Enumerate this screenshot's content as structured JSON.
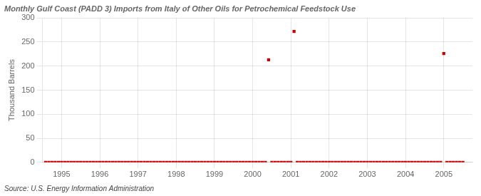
{
  "chart_data": {
    "type": "scatter",
    "title": "Monthly Gulf Coast (PADD 3) Imports from Italy of Other Oils for Petrochemical Feedstock Use",
    "ylabel": "Thousand Barrels",
    "source": "Source: U.S. Energy Information Administration",
    "color": "#cc0000",
    "marker": "square",
    "grid": true,
    "xlim": [
      1994.5,
      2005.75
    ],
    "xticks": [
      1995,
      1996,
      1997,
      1998,
      1999,
      2000,
      2001,
      2002,
      2003,
      2004,
      2005
    ],
    "ylim": [
      0,
      300
    ],
    "yticks": [
      0,
      50,
      100,
      150,
      200,
      250,
      300
    ],
    "x": [
      1994.583,
      1994.667,
      1994.75,
      1994.833,
      1994.917,
      1995.0,
      1995.083,
      1995.167,
      1995.25,
      1995.333,
      1995.417,
      1995.5,
      1995.583,
      1995.667,
      1995.75,
      1995.833,
      1995.917,
      1996.0,
      1996.083,
      1996.167,
      1996.25,
      1996.333,
      1996.417,
      1996.5,
      1996.583,
      1996.667,
      1996.75,
      1996.833,
      1996.917,
      1997.0,
      1997.083,
      1997.167,
      1997.25,
      1997.333,
      1997.417,
      1997.5,
      1997.583,
      1997.667,
      1997.75,
      1997.833,
      1997.917,
      1998.0,
      1998.083,
      1998.167,
      1998.25,
      1998.333,
      1998.417,
      1998.5,
      1998.583,
      1998.667,
      1998.75,
      1998.833,
      1998.917,
      1999.0,
      1999.083,
      1999.167,
      1999.25,
      1999.333,
      1999.417,
      1999.5,
      1999.583,
      1999.667,
      1999.75,
      1999.833,
      1999.917,
      2000.0,
      2000.083,
      2000.167,
      2000.25,
      2000.333,
      2000.417,
      2000.5,
      2000.583,
      2000.667,
      2000.75,
      2000.833,
      2000.917,
      2001.0,
      2001.083,
      2001.167,
      2001.25,
      2001.333,
      2001.417,
      2001.5,
      2001.583,
      2001.667,
      2001.75,
      2001.833,
      2001.917,
      2002.0,
      2002.083,
      2002.167,
      2002.25,
      2002.333,
      2002.417,
      2002.5,
      2002.583,
      2002.667,
      2002.75,
      2002.833,
      2002.917,
      2003.0,
      2003.083,
      2003.167,
      2003.25,
      2003.333,
      2003.417,
      2003.5,
      2003.583,
      2003.667,
      2003.75,
      2003.833,
      2003.917,
      2004.0,
      2004.083,
      2004.167,
      2004.25,
      2004.333,
      2004.417,
      2004.5,
      2004.583,
      2004.667,
      2004.75,
      2004.833,
      2004.917,
      2005.0,
      2005.083,
      2005.167,
      2005.25,
      2005.333,
      2005.417,
      2005.5
    ],
    "values": [
      0,
      0,
      0,
      0,
      0,
      0,
      0,
      0,
      0,
      0,
      0,
      0,
      0,
      0,
      0,
      0,
      0,
      0,
      0,
      0,
      0,
      0,
      0,
      0,
      0,
      0,
      0,
      0,
      0,
      0,
      0,
      0,
      0,
      0,
      0,
      0,
      0,
      0,
      0,
      0,
      0,
      0,
      0,
      0,
      0,
      0,
      0,
      0,
      0,
      0,
      0,
      0,
      0,
      0,
      0,
      0,
      0,
      0,
      0,
      0,
      0,
      0,
      0,
      0,
      0,
      0,
      0,
      0,
      0,
      0,
      213,
      0,
      0,
      0,
      0,
      0,
      0,
      0,
      272,
      0,
      0,
      0,
      0,
      0,
      0,
      0,
      0,
      0,
      0,
      0,
      0,
      0,
      0,
      0,
      0,
      0,
      0,
      0,
      0,
      0,
      0,
      0,
      0,
      0,
      0,
      0,
      0,
      0,
      0,
      0,
      0,
      0,
      0,
      0,
      0,
      0,
      0,
      0,
      0,
      0,
      0,
      0,
      0,
      0,
      0,
      226,
      0,
      0,
      0,
      0,
      0,
      0
    ]
  }
}
